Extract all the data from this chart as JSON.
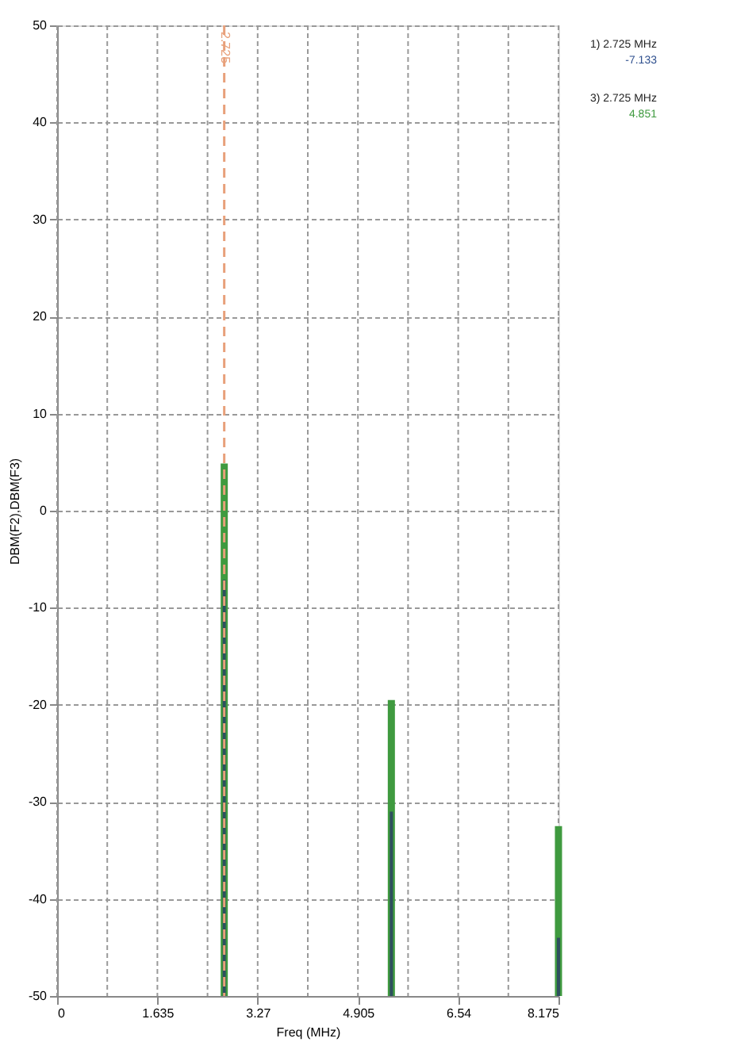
{
  "chart_data": {
    "type": "line",
    "series": [
      {
        "color": "#3f9a3f",
        "x": [
          2.725,
          2.725
        ],
        "values": [
          -50,
          4.851
        ]
      },
      {
        "color": "#3f9a3f",
        "x": [
          5.45,
          5.45
        ],
        "values": [
          -50,
          -19.5
        ]
      },
      {
        "color": "#3f9a3f",
        "x": [
          8.175,
          8.175
        ],
        "values": [
          -50,
          -32.5
        ]
      },
      {
        "color": "#2e4f5e",
        "x": [
          2.725,
          2.725
        ],
        "values": [
          -50,
          -7.133
        ]
      },
      {
        "color": "#2e4f5e",
        "x": [
          5.45,
          5.45
        ],
        "values": [
          -50,
          -31
        ]
      },
      {
        "color": "#2e4f5e",
        "x": [
          8.175,
          8.175
        ],
        "values": [
          -50,
          -44
        ]
      }
    ],
    "xlabel": "Freq (MHz)",
    "ylabel": "DBM(F2),DBM(F3)",
    "xlim": [
      0,
      8.175
    ],
    "xticks": [
      0,
      {
        "value": 0.8175,
        "label": null
      },
      1.635,
      {
        "value": 2.4525,
        "label": null
      },
      3.27,
      {
        "value": 4.0875,
        "label": null
      },
      4.905,
      {
        "value": 5.7225,
        "label": null
      },
      6.54,
      {
        "value": 7.3575,
        "label": null
      },
      8.175
    ],
    "ylim": [
      -50,
      50
    ],
    "yticks": [
      -50,
      -40,
      -30,
      -20,
      -10,
      0,
      10,
      20,
      30,
      40,
      50
    ],
    "grid": true,
    "ref_lines": [
      {
        "axis": "x",
        "value": 2.725,
        "label": "2.725",
        "color": "#e8a07a",
        "line_style": "dashed"
      }
    ],
    "annotations": [
      "1) 2.725 MHz",
      "-7.133",
      "3) 2.725 MHz",
      "4.851"
    ]
  }
}
